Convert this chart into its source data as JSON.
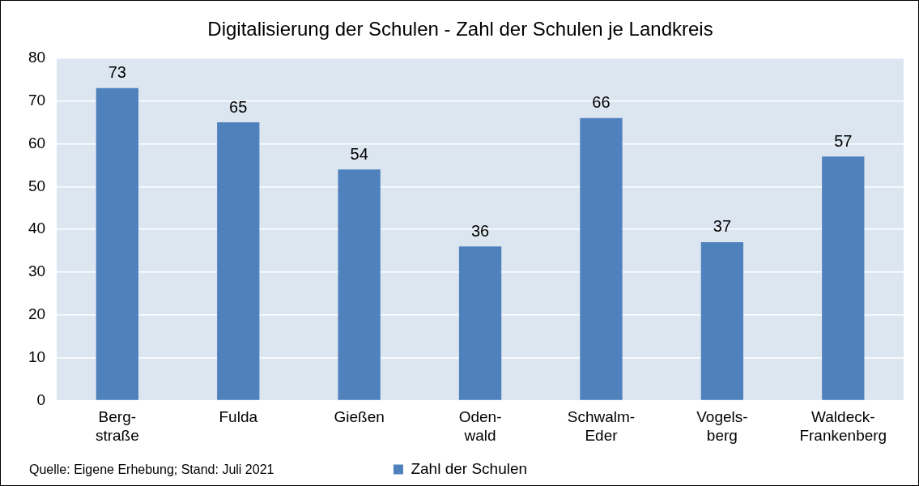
{
  "chart_data": {
    "type": "bar",
    "title": "Digitalisierung der Schulen - Zahl der Schulen je Landkreis",
    "categories": [
      "Berg-\nstraße",
      "Fulda",
      "Gießen",
      "Oden-\nwald",
      "Schwalm-\nEder",
      "Vogels-\nberg",
      "Waldeck-\nFrankenberg"
    ],
    "series": [
      {
        "name": "Zahl der Schulen",
        "color": "#4f81bd",
        "values": [
          73,
          65,
          54,
          36,
          66,
          37,
          57
        ]
      }
    ],
    "ylim": [
      0,
      80
    ],
    "yticks": [
      0,
      10,
      20,
      30,
      40,
      50,
      60,
      70,
      80
    ],
    "grid": "y",
    "legend": "bottom",
    "data_labels": true,
    "annotations": [
      "Quelle: Eigene Erhebung; Stand: Juli 2021"
    ]
  }
}
